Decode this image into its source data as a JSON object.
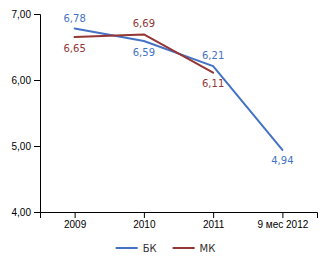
{
  "chart_data": {
    "type": "line",
    "categories": [
      "2009",
      "2010",
      "2011",
      "9 мес 2012"
    ],
    "series": [
      {
        "name": "БК",
        "color": "#4472c4",
        "values": [
          6.78,
          6.59,
          6.21,
          4.94
        ],
        "value_labels": [
          "6,78",
          "6,59",
          "6,21",
          "4,94"
        ]
      },
      {
        "name": "МК",
        "color": "#943634",
        "values": [
          6.65,
          6.69,
          6.11,
          null
        ],
        "value_labels": [
          "6,65",
          "6,69",
          "6,11",
          null
        ]
      }
    ],
    "ylim": [
      4.0,
      7.0
    ],
    "yticks": [
      {
        "value": 4.0,
        "label": "4,00"
      },
      {
        "value": 5.0,
        "label": "5,00"
      },
      {
        "value": 6.0,
        "label": "6,00"
      },
      {
        "value": 7.0,
        "label": "7,00"
      }
    ],
    "data_labels": true,
    "grid": false,
    "legend": "bottom"
  }
}
